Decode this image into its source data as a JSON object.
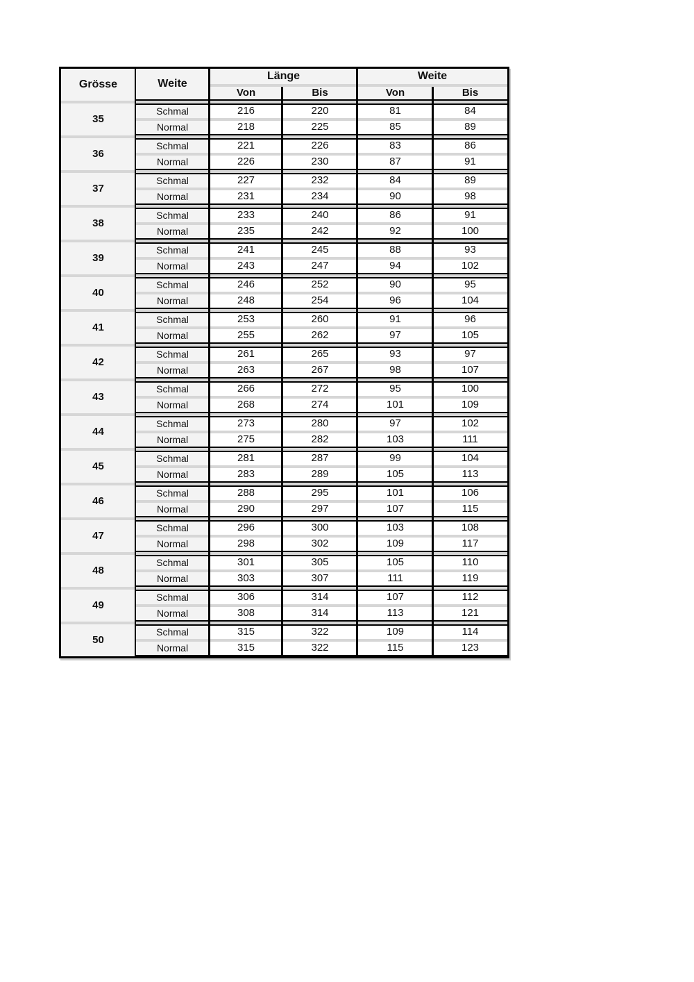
{
  "table": {
    "headers": {
      "groesse": "Grösse",
      "weite": "Weite",
      "laenge_group": "Länge",
      "weite_group": "Weite",
      "von": "Von",
      "bis": "Bis"
    },
    "row_labels": {
      "schmal": "Schmal",
      "normal": "Normal"
    },
    "colors": {
      "border": "#000000",
      "label_cell_bg": "#f3f3f3",
      "value_cell_bg": "#ffffff",
      "row_stripe": "#d6d6d6"
    },
    "sizes": [
      {
        "size": "35",
        "schmal": [
          "216",
          "220",
          "81",
          "84"
        ],
        "normal": [
          "218",
          "225",
          "85",
          "89"
        ]
      },
      {
        "size": "36",
        "schmal": [
          "221",
          "226",
          "83",
          "86"
        ],
        "normal": [
          "226",
          "230",
          "87",
          "91"
        ]
      },
      {
        "size": "37",
        "schmal": [
          "227",
          "232",
          "84",
          "89"
        ],
        "normal": [
          "231",
          "234",
          "90",
          "98"
        ]
      },
      {
        "size": "38",
        "schmal": [
          "233",
          "240",
          "86",
          "91"
        ],
        "normal": [
          "235",
          "242",
          "92",
          "100"
        ]
      },
      {
        "size": "39",
        "schmal": [
          "241",
          "245",
          "88",
          "93"
        ],
        "normal": [
          "243",
          "247",
          "94",
          "102"
        ]
      },
      {
        "size": "40",
        "schmal": [
          "246",
          "252",
          "90",
          "95"
        ],
        "normal": [
          "248",
          "254",
          "96",
          "104"
        ]
      },
      {
        "size": "41",
        "schmal": [
          "253",
          "260",
          "91",
          "96"
        ],
        "normal": [
          "255",
          "262",
          "97",
          "105"
        ]
      },
      {
        "size": "42",
        "schmal": [
          "261",
          "265",
          "93",
          "97"
        ],
        "normal": [
          "263",
          "267",
          "98",
          "107"
        ]
      },
      {
        "size": "43",
        "schmal": [
          "266",
          "272",
          "95",
          "100"
        ],
        "normal": [
          "268",
          "274",
          "101",
          "109"
        ]
      },
      {
        "size": "44",
        "schmal": [
          "273",
          "280",
          "97",
          "102"
        ],
        "normal": [
          "275",
          "282",
          "103",
          "111"
        ]
      },
      {
        "size": "45",
        "schmal": [
          "281",
          "287",
          "99",
          "104"
        ],
        "normal": [
          "283",
          "289",
          "105",
          "113"
        ]
      },
      {
        "size": "46",
        "schmal": [
          "288",
          "295",
          "101",
          "106"
        ],
        "normal": [
          "290",
          "297",
          "107",
          "115"
        ]
      },
      {
        "size": "47",
        "schmal": [
          "296",
          "300",
          "103",
          "108"
        ],
        "normal": [
          "298",
          "302",
          "109",
          "117"
        ]
      },
      {
        "size": "48",
        "schmal": [
          "301",
          "305",
          "105",
          "110"
        ],
        "normal": [
          "303",
          "307",
          "111",
          "119"
        ]
      },
      {
        "size": "49",
        "schmal": [
          "306",
          "314",
          "107",
          "112"
        ],
        "normal": [
          "308",
          "314",
          "113",
          "121"
        ]
      },
      {
        "size": "50",
        "schmal": [
          "315",
          "322",
          "109",
          "114"
        ],
        "normal": [
          "315",
          "322",
          "115",
          "123"
        ]
      }
    ]
  }
}
